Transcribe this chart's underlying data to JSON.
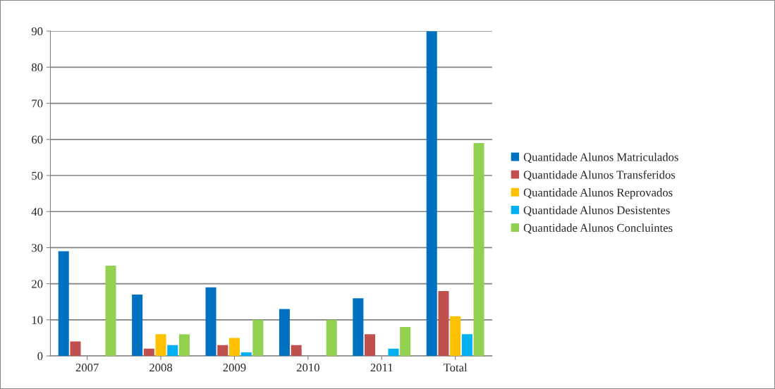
{
  "chart_data": {
    "type": "bar",
    "categories": [
      "2007",
      "2008",
      "2009",
      "2010",
      "2011",
      "Total"
    ],
    "series": [
      {
        "name": "Quantidade Alunos Matriculados",
        "color": "#0070c0",
        "values": [
          29,
          17,
          19,
          13,
          16,
          90
        ]
      },
      {
        "name": "Quantidade Alunos Transferidos",
        "color": "#c0504d",
        "values": [
          4,
          2,
          3,
          3,
          6,
          18
        ]
      },
      {
        "name": "Quantidade Alunos Reprovados",
        "color": "#ffc000",
        "values": [
          0,
          6,
          5,
          0,
          0,
          11
        ]
      },
      {
        "name": "Quantidade Alunos Desistentes",
        "color": "#00b0f0",
        "values": [
          0,
          3,
          1,
          0,
          2,
          6
        ]
      },
      {
        "name": "Quantidade Alunos Concluintes",
        "color": "#92d050",
        "values": [
          25,
          6,
          10,
          10,
          8,
          59
        ]
      }
    ],
    "ylim": [
      0,
      90
    ],
    "yticks": [
      0,
      10,
      20,
      30,
      40,
      50,
      60,
      70,
      80,
      90
    ],
    "grid": "y",
    "legend": "right"
  }
}
